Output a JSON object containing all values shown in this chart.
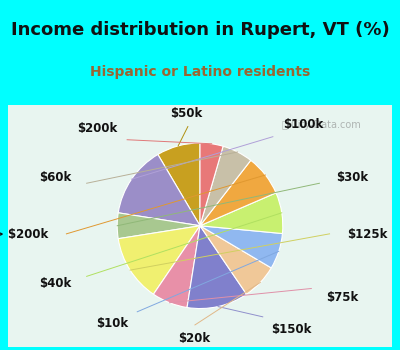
{
  "title": "Income distribution in Rupert, VT (%)",
  "subtitle": "Hispanic or Latino residents",
  "watermark": "ⓘ City-Data.com",
  "background_cyan": "#00ffff",
  "background_chart": "#e8f5f0",
  "labels": [
    "$50k",
    "$100k",
    "$30k",
    "$125k",
    "$75k",
    "$150k",
    "$20k",
    "$10k",
    "$40k",
    "> $200k",
    "$60k",
    "$200k"
  ],
  "sizes": [
    8.5,
    14.0,
    5.0,
    13.0,
    7.0,
    12.0,
    7.0,
    7.0,
    8.0,
    8.0,
    6.0,
    4.5
  ],
  "colors": [
    "#c8a020",
    "#9b8ec8",
    "#a8c890",
    "#f0f070",
    "#e890a8",
    "#8080cc",
    "#f0c898",
    "#90b8f0",
    "#c8f070",
    "#f0a840",
    "#c8c0a8",
    "#e87878"
  ],
  "startangle": 90,
  "title_fontsize": 13,
  "subtitle_fontsize": 10,
  "label_fontsize": 8.5,
  "title_color": "#111111",
  "subtitle_color": "#996633"
}
